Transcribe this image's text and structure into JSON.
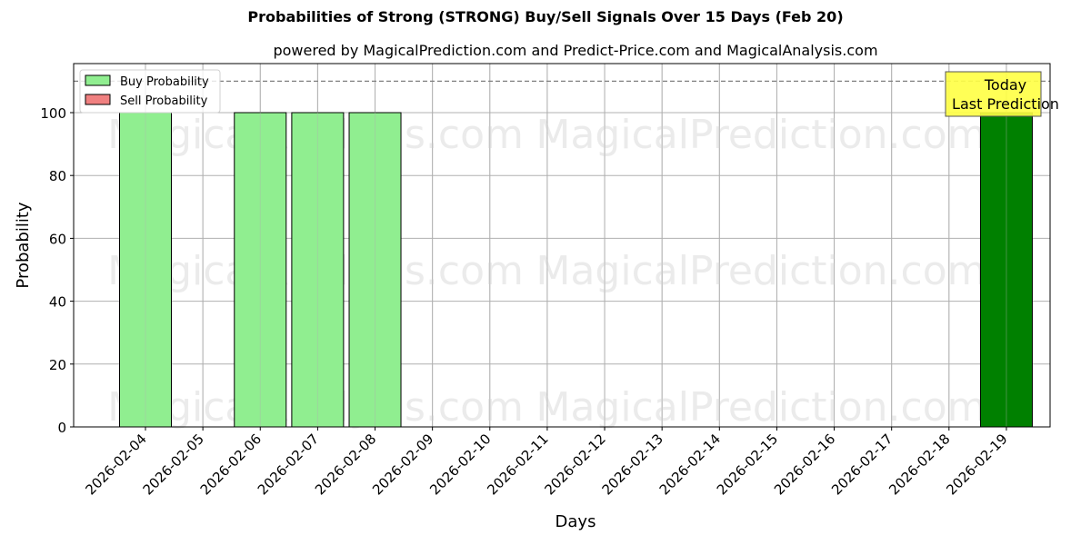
{
  "title": "Probabilities of Strong (STRONG) Buy/Sell Signals Over 15 Days (Feb 20)",
  "subtitle": "powered by MagicalPrediction.com and Predict-Price.com and MagicalAnalysis.com",
  "watermarks": [
    "MagicalAnalysis.com",
    "MagicalPrediction.com"
  ],
  "annotation": {
    "line1": "Today",
    "line2": "Last Prediction",
    "bg_color": "#ffff44"
  },
  "colors": {
    "buy": "#90ee90",
    "sell": "#f08080",
    "today_bar": "#008000"
  },
  "chart_data": {
    "type": "bar",
    "title": "Probabilities of Strong (STRONG) Buy/Sell Signals Over 15 Days (Feb 20)",
    "subtitle": "powered by MagicalPrediction.com and Predict-Price.com and MagicalAnalysis.com",
    "xlabel": "Days",
    "ylabel": "Probability",
    "ylim": [
      0,
      115
    ],
    "yticks": [
      0,
      20,
      40,
      60,
      80,
      100
    ],
    "grid": true,
    "legend_position": "upper left",
    "reference_line": {
      "y": 110,
      "style": "dashed",
      "color": "#808080"
    },
    "categories": [
      "2026-02-04",
      "2026-02-05",
      "2026-02-06",
      "2026-02-07",
      "2026-02-08",
      "2026-02-09",
      "2026-02-10",
      "2026-02-11",
      "2026-02-12",
      "2026-02-13",
      "2026-02-14",
      "2026-02-15",
      "2026-02-16",
      "2026-02-17",
      "2026-02-18",
      "2026-02-19"
    ],
    "series": [
      {
        "name": "Buy Probability",
        "color": "#90ee90",
        "values": [
          100,
          0,
          100,
          100,
          100,
          0,
          0,
          0,
          0,
          0,
          0,
          0,
          0,
          0,
          0,
          100
        ]
      },
      {
        "name": "Sell Probability",
        "color": "#f08080",
        "values": [
          0,
          0,
          0,
          0,
          0,
          0,
          0,
          0,
          0,
          0,
          0,
          0,
          0,
          0,
          0,
          0
        ]
      }
    ],
    "highlight": {
      "category": "2026-02-19",
      "color": "#008000",
      "label": "Today\nLast Prediction"
    }
  }
}
